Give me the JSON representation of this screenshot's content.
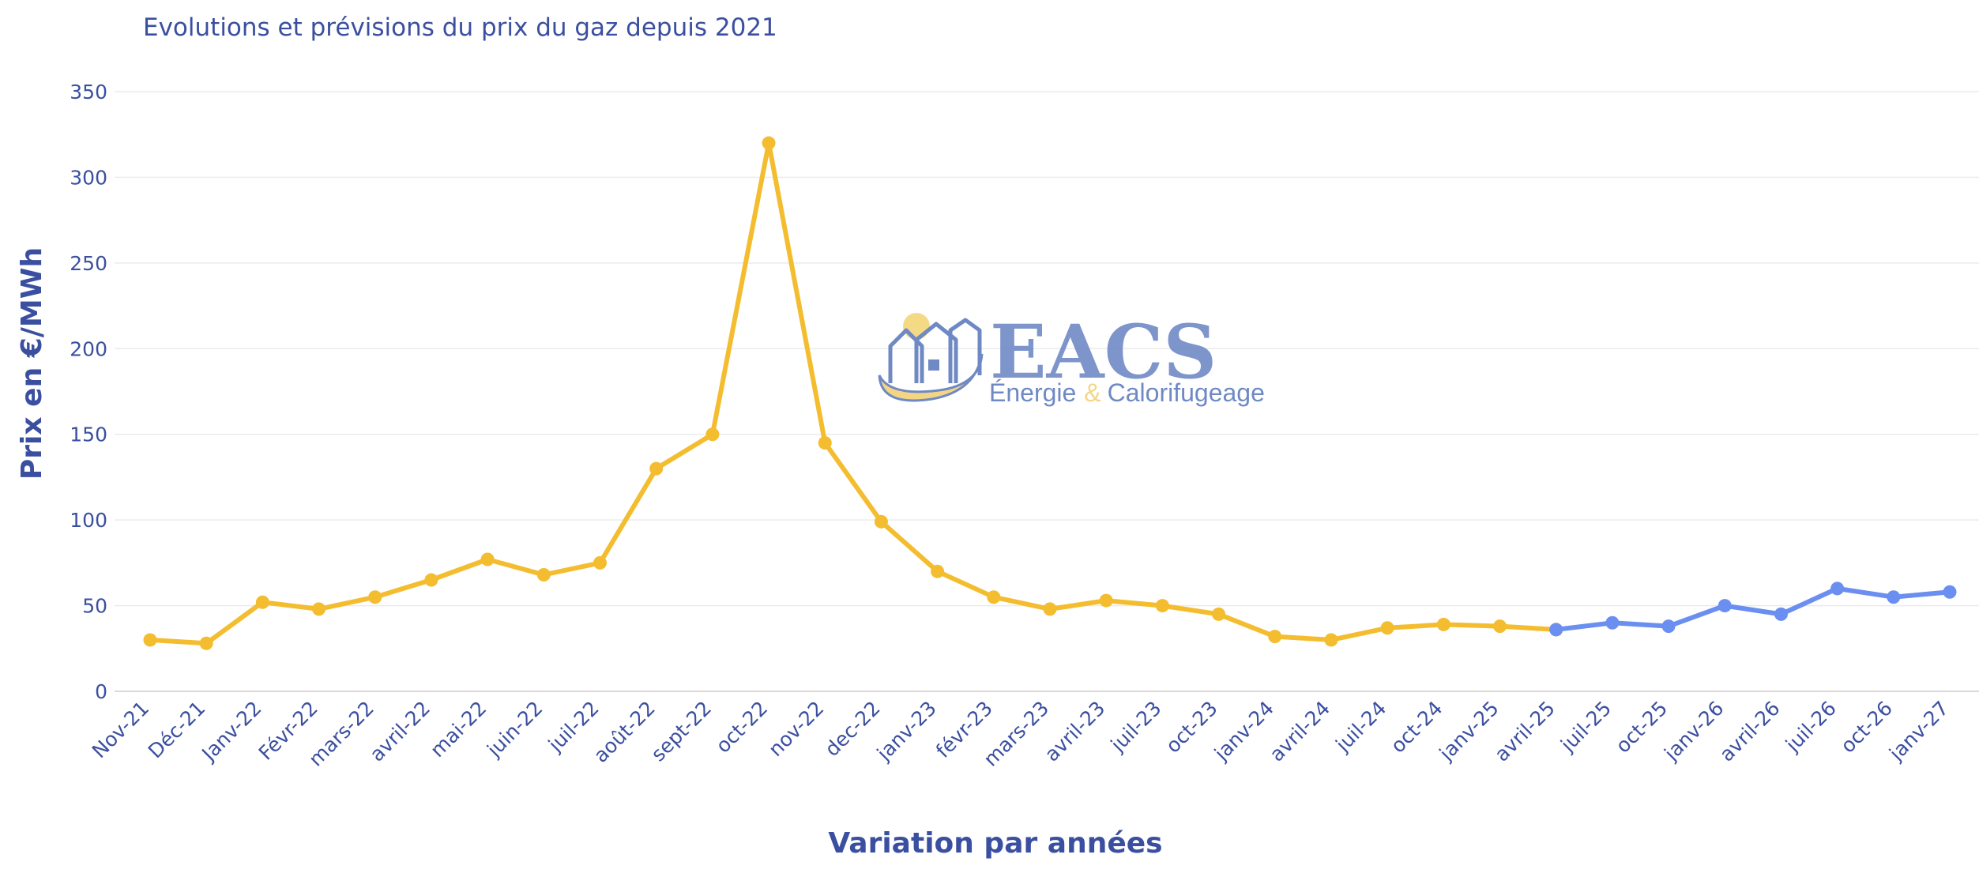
{
  "watermark": {
    "brand": "EACS",
    "tagline_left": "Énergie",
    "tagline_amp": "&",
    "tagline_right": "Calorifugeage"
  },
  "colors": {
    "historical": "#f4bd2f",
    "forecast": "#6b8ff0",
    "text": "#3b4fa0",
    "grid": "#ebebeb"
  },
  "chart_data": {
    "type": "line",
    "title": "Evolutions et prévisions du prix du gaz depuis 2021",
    "xlabel": "Variation par années",
    "ylabel": "Prix en €/MWh",
    "ylim": [
      0,
      350
    ],
    "yticks": [
      0,
      50,
      100,
      150,
      200,
      250,
      300,
      350
    ],
    "grid": true,
    "categories": [
      "Nov-21",
      "Déc-21",
      "Janv-22",
      "Févr-22",
      "mars-22",
      "avril-22",
      "mai-22",
      "juin-22",
      "juil-22",
      "août-22",
      "sept-22",
      "oct-22",
      "nov-22",
      "dec-22",
      "janv-23",
      "févr-23",
      "mars-23",
      "avril-23",
      "juil-23",
      "oct-23",
      "janv-24",
      "avril-24",
      "juil-24",
      "oct-24",
      "janv-25",
      "avril-25",
      "juil-25",
      "oct-25",
      "janv-26",
      "avril-26",
      "juil-26",
      "oct-26",
      "janv-27"
    ],
    "series": [
      {
        "values": [
          30,
          28,
          52,
          48,
          55,
          65,
          77,
          68,
          75,
          130,
          150,
          320,
          145,
          99,
          70,
          55,
          48,
          53,
          50,
          45,
          32,
          30,
          37,
          39,
          38,
          36,
          null,
          null,
          null,
          null,
          null,
          null,
          null
        ]
      },
      {
        "values": [
          null,
          null,
          null,
          null,
          null,
          null,
          null,
          null,
          null,
          null,
          null,
          null,
          null,
          null,
          null,
          null,
          null,
          null,
          null,
          null,
          null,
          null,
          null,
          null,
          null,
          36,
          40,
          38,
          50,
          45,
          60,
          55,
          58
        ]
      }
    ]
  }
}
